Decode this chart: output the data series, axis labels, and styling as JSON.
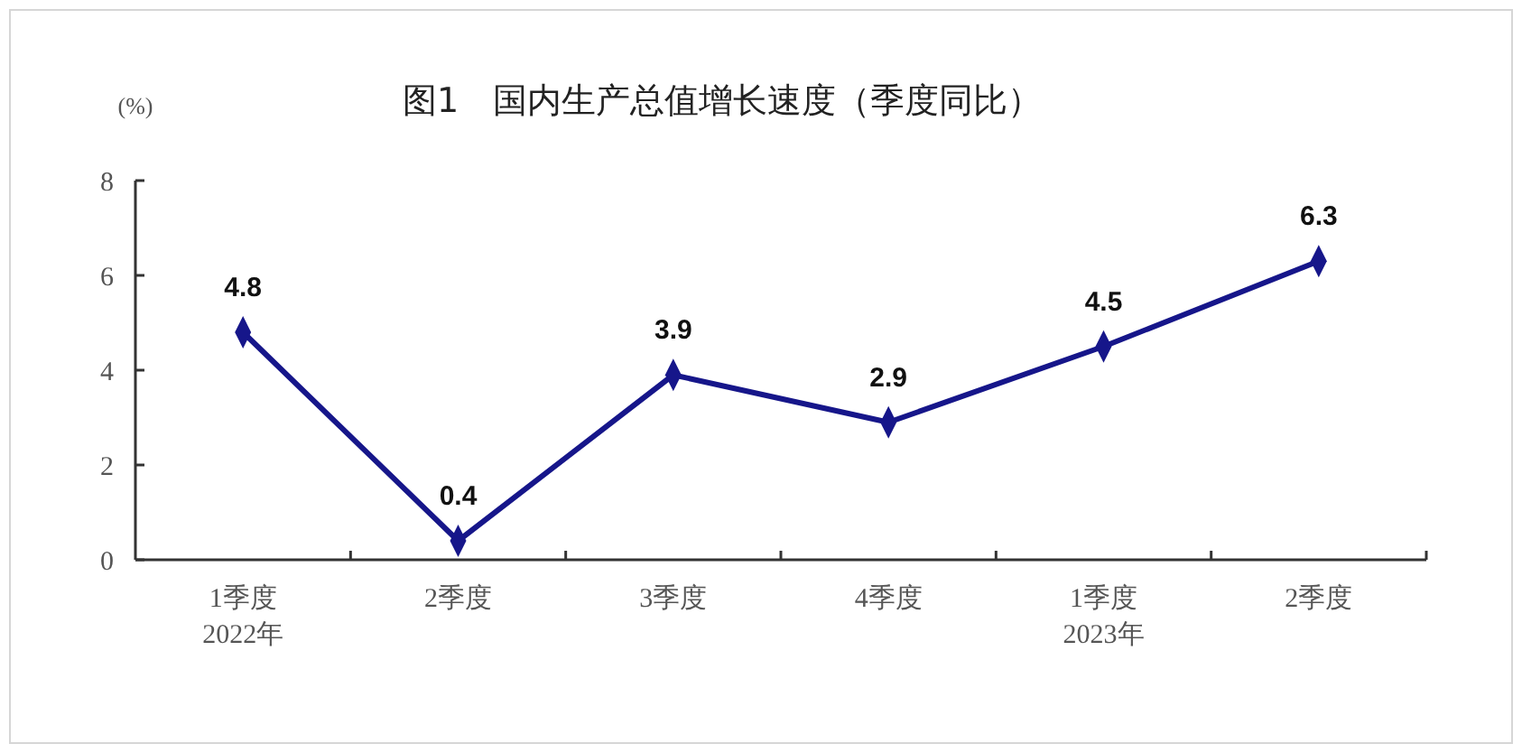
{
  "chart_data": {
    "type": "line",
    "title": "图1　国内生产总值增长速度（季度同比）",
    "ylabel": "(%)",
    "categories": [
      "1季度\n2022年",
      "2季度",
      "3季度",
      "4季度",
      "1季度\n2023年",
      "2季度"
    ],
    "series": [
      {
        "color": "#16168a",
        "values": [
          4.8,
          0.4,
          3.9,
          2.9,
          4.5,
          6.3
        ]
      }
    ],
    "ylim": [
      0,
      8
    ],
    "yticks": [
      0,
      2,
      4,
      6,
      8
    ],
    "grid": false,
    "marker": "diamond",
    "line_style": "solid",
    "data_labels": true
  }
}
